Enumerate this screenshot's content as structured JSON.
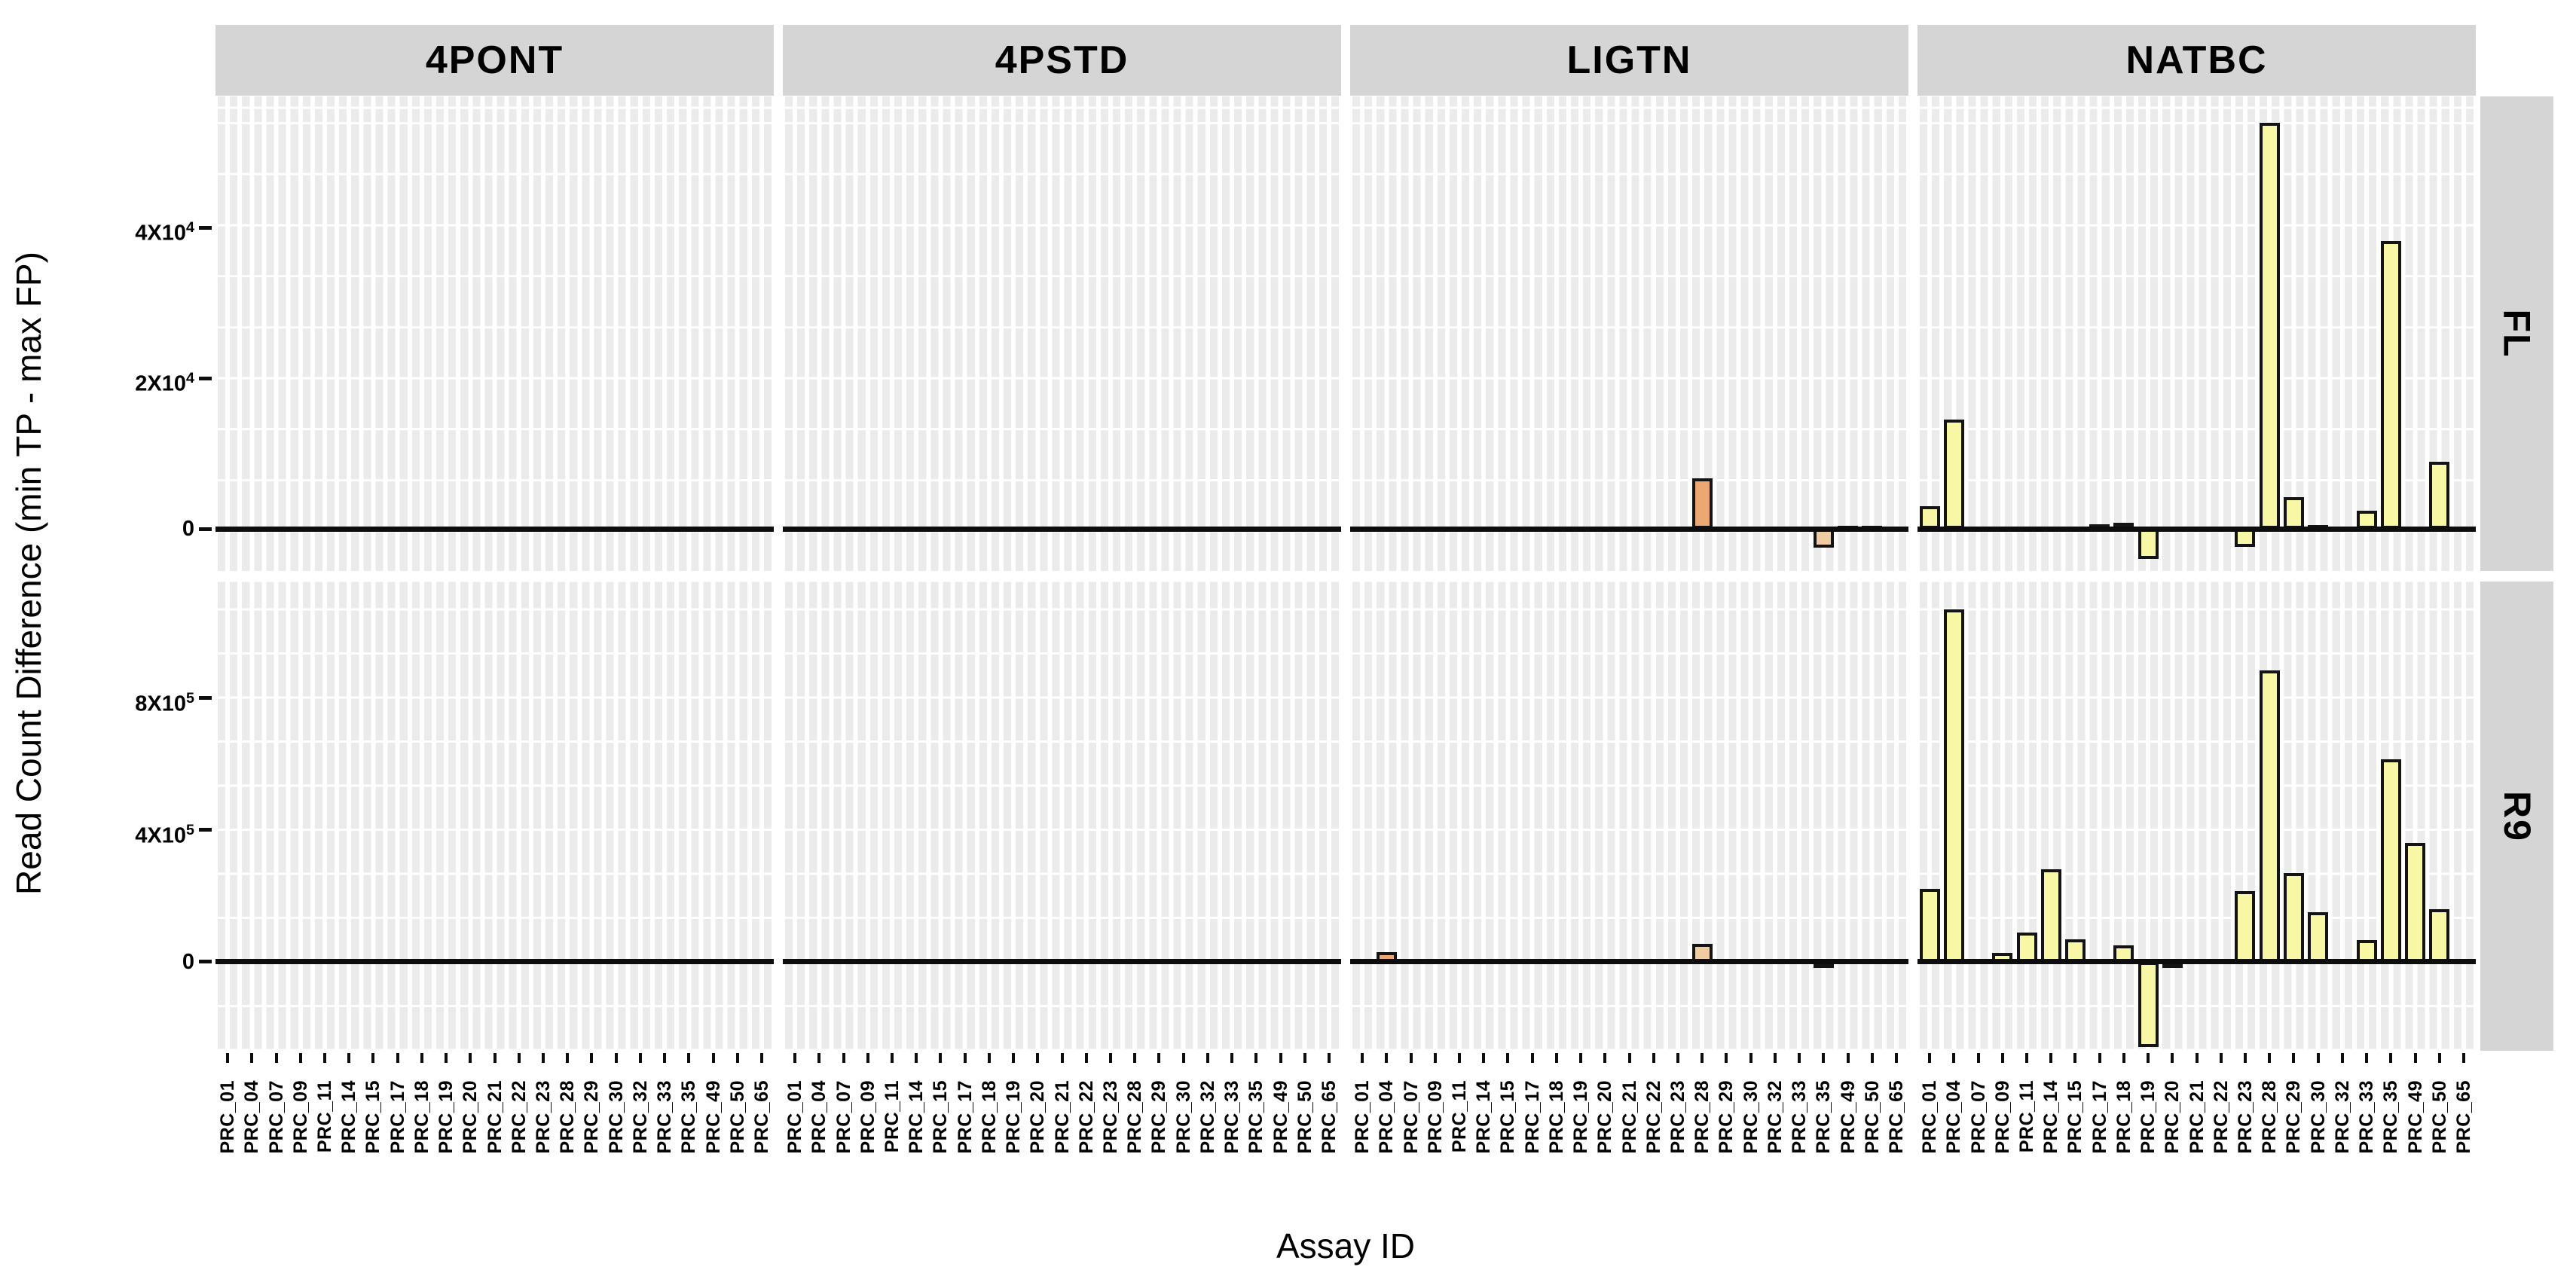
{
  "chart_data": {
    "type": "bar",
    "title": "",
    "xlabel": "Assay ID",
    "ylabel": "Read Count Difference (min TP - max FP)",
    "legend": false,
    "grid": true,
    "col_facets": [
      "4PONT",
      "4PSTD",
      "LIGTN",
      "NATBC"
    ],
    "row_facets": [
      {
        "name": "FL",
        "ylim": [
          -5600,
          57400
        ],
        "ticks": [
          {
            "base": "4X10",
            "exp": "4",
            "value": 40000
          },
          {
            "base": "2X10",
            "exp": "4",
            "value": 20000
          },
          {
            "base": "0",
            "exp": "",
            "value": 0
          }
        ]
      },
      {
        "name": "R9",
        "ylim": [
          -270000,
          1154000
        ],
        "ticks": [
          {
            "base": "8X10",
            "exp": "5",
            "value": 800000
          },
          {
            "base": "4X10",
            "exp": "5",
            "value": 400000
          },
          {
            "base": "0",
            "exp": "",
            "value": 0
          }
        ]
      }
    ],
    "categories": [
      "PRC_01",
      "PRC_04",
      "PRC_07",
      "PRC_09",
      "PRC_11",
      "PRC_14",
      "PRC_15",
      "PRC_17",
      "PRC_18",
      "PRC_19",
      "PRC_20",
      "PRC_21",
      "PRC_22",
      "PRC_23",
      "PRC_28",
      "PRC_29",
      "PRC_30",
      "PRC_32",
      "PRC_33",
      "PRC_35",
      "PRC_49",
      "PRC_50",
      "PRC_65"
    ],
    "bars": {
      "FL": {
        "4PONT": [],
        "4PSTD": [],
        "LIGTN": [
          {
            "cat": "PRC_28",
            "value": 6700,
            "fill": "orange"
          },
          {
            "cat": "PRC_35",
            "value": -2500,
            "fill": "orangeLight"
          },
          {
            "cat": "PRC_49",
            "value": 400,
            "fill": "orange"
          },
          {
            "cat": "PRC_50",
            "value": 400,
            "fill": "orange"
          }
        ],
        "NATBC": [
          {
            "cat": "PRC_01",
            "value": 3000
          },
          {
            "cat": "PRC_04",
            "value": 14500
          },
          {
            "cat": "PRC_17",
            "value": 600
          },
          {
            "cat": "PRC_18",
            "value": 800
          },
          {
            "cat": "PRC_19",
            "value": -4000
          },
          {
            "cat": "PRC_23",
            "value": -2400
          },
          {
            "cat": "PRC_28",
            "value": 53900
          },
          {
            "cat": "PRC_29",
            "value": 4200
          },
          {
            "cat": "PRC_30",
            "value": 500
          },
          {
            "cat": "PRC_33",
            "value": 2400
          },
          {
            "cat": "PRC_35",
            "value": 38200
          },
          {
            "cat": "PRC_50",
            "value": 8900
          }
        ]
      },
      "R9": {
        "4PONT": [],
        "4PSTD": [],
        "LIGTN": [
          {
            "cat": "PRC_04",
            "value": 30000,
            "fill": "orange"
          },
          {
            "cat": "PRC_28",
            "value": 55000,
            "fill": "orangeLight"
          },
          {
            "cat": "PRC_35",
            "value": -12000,
            "fill": "orangeLight"
          }
        ],
        "NATBC": [
          {
            "cat": "PRC_01",
            "value": 222000
          },
          {
            "cat": "PRC_04",
            "value": 1070000
          },
          {
            "cat": "PRC_09",
            "value": 27000
          },
          {
            "cat": "PRC_11",
            "value": 89000
          },
          {
            "cat": "PRC_14",
            "value": 280000
          },
          {
            "cat": "PRC_15",
            "value": 69000
          },
          {
            "cat": "PRC_18",
            "value": 50000
          },
          {
            "cat": "PRC_19",
            "value": -258000
          },
          {
            "cat": "PRC_20",
            "value": -10000
          },
          {
            "cat": "PRC_23",
            "value": 215000
          },
          {
            "cat": "PRC_28",
            "value": 885000
          },
          {
            "cat": "PRC_29",
            "value": 270000
          },
          {
            "cat": "PRC_30",
            "value": 150000
          },
          {
            "cat": "PRC_33",
            "value": 65000
          },
          {
            "cat": "PRC_35",
            "value": 615000
          },
          {
            "cat": "PRC_49",
            "value": 360000
          },
          {
            "cat": "PRC_50",
            "value": 160000
          }
        ]
      }
    },
    "colors": {
      "yellow": "#F8F7A6",
      "orange": "#EBA873",
      "orangeLight": "#F0CDA1",
      "outline": "#141414",
      "panel_bg": "#EBEBEB",
      "gridline": "#FFFFFF",
      "strip_bg": "#D5D5D5",
      "text": "#000000",
      "default_fill": "yellow"
    }
  }
}
